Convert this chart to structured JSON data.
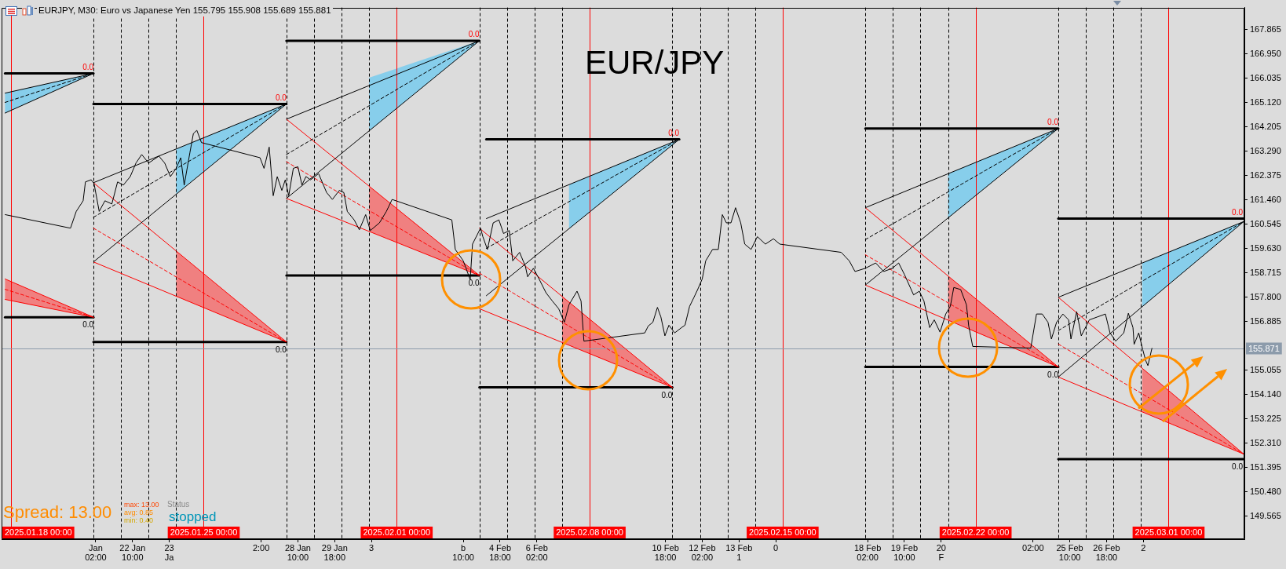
{
  "chart_data": {
    "type": "line",
    "title": "EUR/JPY",
    "subtitle": "EURJPY, M30: Euro vs Japanese Yen 155.795 155.908 155.689 155.881",
    "xlim": [
      "2025-01-17T16:00",
      "2025-03-03T18:00"
    ],
    "xticks": [
      {
        "value": "2025-01-21T02:00",
        "label": "Jan 02:00"
      },
      {
        "value": "2025-01-22T10:00",
        "label": "22 Jan 10:00"
      },
      {
        "value": "2025-01-23T18:00",
        "label": "23 Ja"
      },
      {
        "value": "2025-01-27T02:00",
        "label": "2:00"
      },
      {
        "value": "2025-01-28T10:00",
        "label": "28 Jan 10:00"
      },
      {
        "value": "2025-01-29T18:00",
        "label": "29 Jan 18:00"
      },
      {
        "value": "2025-01-31T02:00",
        "label": "3"
      },
      {
        "value": "2025-02-03T10:00",
        "label": "b 10:00"
      },
      {
        "value": "2025-02-04T18:00",
        "label": "4 Feb 18:00"
      },
      {
        "value": "2025-02-06T02:00",
        "label": "6 Feb 02:00"
      },
      {
        "value": "2025-02-10T18:00",
        "label": "10 Feb 18:00"
      },
      {
        "value": "2025-02-12T02:00",
        "label": "12 Feb 02:00"
      },
      {
        "value": "2025-02-13T10:00",
        "label": "13 Feb 1"
      },
      {
        "value": "2025-02-14T18:00",
        "label": "0"
      },
      {
        "value": "2025-02-18T02:00",
        "label": "18 Feb 02:00"
      },
      {
        "value": "2025-02-19T10:00",
        "label": "19 Feb 10:00"
      },
      {
        "value": "2025-02-20T18:00",
        "label": "20 F"
      },
      {
        "value": "2025-02-24T02:00",
        "label": "02:00"
      },
      {
        "value": "2025-02-25T10:00",
        "label": "25 Feb 10:00"
      },
      {
        "value": "2025-02-26T18:00",
        "label": "26 Feb 18:00"
      },
      {
        "value": "2025-02-28T02:00",
        "label": "2"
      }
    ],
    "ylim": [
      148.7,
      168.7
    ],
    "yticks": [
      149.565,
      {
        "value": 150.48,
        "label": "150.480"
      },
      151.395,
      {
        "value": 152.31,
        "label": "152.310"
      },
      153.225,
      {
        "value": 154.14,
        "label": "154.140"
      },
      155.055,
      156.885,
      {
        "value": 157.8,
        "label": "157.800"
      },
      158.715,
      {
        "value": 159.63,
        "label": "159.630"
      },
      160.545,
      {
        "value": 161.46,
        "label": "161.460"
      },
      162.375,
      {
        "value": 163.29,
        "label": "163.290"
      },
      164.205,
      {
        "value": 165.12,
        "label": "165.120"
      },
      166.035,
      {
        "value": 166.95,
        "label": "166.950"
      },
      167.865
    ],
    "ref_lines": [
      {
        "axis": "x",
        "value": "2025-01-18T00:00",
        "label": "2025.01.18 00:00",
        "color": "#ff0000"
      },
      {
        "axis": "x",
        "value": "2025-01-25T00:00",
        "label": "2025.01.25 00:00",
        "color": "#ff0000"
      },
      {
        "axis": "x",
        "value": "2025-02-01T00:00",
        "label": "2025.02.01 00:00",
        "color": "#ff0000"
      },
      {
        "axis": "x",
        "value": "2025-02-08T00:00",
        "label": "2025.02.08 00:00",
        "color": "#ff0000"
      },
      {
        "axis": "x",
        "value": "2025-02-15T00:00",
        "label": "2025.02.15 00:00",
        "color": "#ff0000"
      },
      {
        "axis": "x",
        "value": "2025-02-22T00:00",
        "label": "2025.02.22 00:00",
        "color": "#ff0000"
      },
      {
        "axis": "x",
        "value": "2025-03-01T00:00",
        "label": "2025.03.01 00:00",
        "color": "#ff0000"
      },
      {
        "axis": "x",
        "value": "2025-01-21T00:00",
        "color": "#000000",
        "line_style": "dashed"
      },
      {
        "axis": "x",
        "value": "2025-01-22T00:00",
        "color": "#000000",
        "line_style": "dashed"
      },
      {
        "axis": "x",
        "value": "2025-01-23T00:00",
        "color": "#000000",
        "line_style": "dashed"
      },
      {
        "axis": "x",
        "value": "2025-01-24T00:00",
        "color": "#000000",
        "line_style": "dashed"
      },
      {
        "axis": "x",
        "value": "2025-01-28T00:00",
        "color": "#000000",
        "line_style": "dashed"
      },
      {
        "axis": "x",
        "value": "2025-01-29T00:00",
        "color": "#000000",
        "line_style": "dashed"
      },
      {
        "axis": "x",
        "value": "2025-01-30T00:00",
        "color": "#000000",
        "line_style": "dashed"
      },
      {
        "axis": "x",
        "value": "2025-01-31T00:00",
        "color": "#000000",
        "line_style": "dashed"
      },
      {
        "axis": "x",
        "value": "2025-02-04T00:00",
        "color": "#000000",
        "line_style": "dashed"
      },
      {
        "axis": "x",
        "value": "2025-02-05T00:00",
        "color": "#000000",
        "line_style": "dashed"
      },
      {
        "axis": "x",
        "value": "2025-02-06T00:00",
        "color": "#000000",
        "line_style": "dashed"
      },
      {
        "axis": "x",
        "value": "2025-02-07T00:00",
        "color": "#000000",
        "line_style": "dashed"
      },
      {
        "axis": "x",
        "value": "2025-02-11T00:00",
        "color": "#000000",
        "line_style": "dashed"
      },
      {
        "axis": "x",
        "value": "2025-02-12T00:00",
        "color": "#000000",
        "line_style": "dashed"
      },
      {
        "axis": "x",
        "value": "2025-02-13T00:00",
        "color": "#000000",
        "line_style": "dashed"
      },
      {
        "axis": "x",
        "value": "2025-02-14T00:00",
        "color": "#000000",
        "line_style": "dashed"
      },
      {
        "axis": "x",
        "value": "2025-02-18T00:00",
        "color": "#000000",
        "line_style": "dashed"
      },
      {
        "axis": "x",
        "value": "2025-02-19T00:00",
        "color": "#000000",
        "line_style": "dashed"
      },
      {
        "axis": "x",
        "value": "2025-02-20T00:00",
        "color": "#000000",
        "line_style": "dashed"
      },
      {
        "axis": "x",
        "value": "2025-02-21T00:00",
        "color": "#000000",
        "line_style": "dashed"
      },
      {
        "axis": "x",
        "value": "2025-02-25T00:00",
        "color": "#000000",
        "line_style": "dashed"
      },
      {
        "axis": "x",
        "value": "2025-02-26T00:00",
        "color": "#000000",
        "line_style": "dashed"
      },
      {
        "axis": "x",
        "value": "2025-02-27T00:00",
        "color": "#000000",
        "line_style": "dashed"
      },
      {
        "axis": "x",
        "value": "2025-02-28T00:00",
        "color": "#000000",
        "line_style": "dashed"
      },
      {
        "axis": "y",
        "value": 155.871,
        "label": "155.871",
        "color": "#8c9bab"
      }
    ],
    "series": [
      {
        "color": "#000000",
        "x": [
          "2025-01-17T19:00",
          "2025-01-20T04:00",
          "2025-01-20T09:00",
          "2025-01-20T15:00",
          "2025-01-20T17:00",
          "2025-01-20T22:00",
          "2025-01-21T00:30",
          "2025-01-21T05:00",
          "2025-01-21T10:00",
          "2025-01-21T16:00",
          "2025-01-21T21:00",
          "2025-01-22T02:00",
          "2025-01-22T08:00",
          "2025-01-22T13:00",
          "2025-01-22T18:00",
          "2025-01-23T00:00",
          "2025-01-23T09:00",
          "2025-01-23T14:00",
          "2025-01-23T19:00",
          "2025-01-24T00:00",
          "2025-01-24T04:00",
          "2025-01-24T07:00",
          "2025-01-24T12:00",
          "2025-01-24T15:00",
          "2025-01-24T18:00",
          "2025-01-24T22:00",
          "2025-01-27T01:00",
          "2025-01-27T04:30",
          "2025-01-27T09:00",
          "2025-01-27T12:30",
          "2025-01-27T16:00",
          "2025-01-27T20:00",
          "2025-01-27T23:00",
          "2025-01-28T02:00",
          "2025-01-28T06:00",
          "2025-01-28T10:00",
          "2025-01-28T13:30",
          "2025-01-28T17:00",
          "2025-01-28T21:00",
          "2025-01-29T04:00",
          "2025-01-29T11:00",
          "2025-01-29T16:00",
          "2025-01-29T22:00",
          "2025-01-30T02:00",
          "2025-01-30T05:00",
          "2025-01-30T11:00",
          "2025-01-30T15:30",
          "2025-01-30T21:00",
          "2025-01-31T01:00",
          "2025-01-31T09:00",
          "2025-01-31T15:00",
          "2025-01-31T20:00",
          "2025-02-03T00:00",
          "2025-02-03T03:00",
          "2025-02-03T10:00",
          "2025-02-03T16:00",
          "2025-02-03T18:00",
          "2025-02-04T01:00",
          "2025-02-04T03:00",
          "2025-02-04T07:00",
          "2025-02-04T12:00",
          "2025-02-04T17:00",
          "2025-02-04T21:00",
          "2025-02-05T02:00",
          "2025-02-05T05:00",
          "2025-02-05T11:00",
          "2025-02-05T16:00",
          "2025-02-05T18:00",
          "2025-02-05T23:00",
          "2025-02-06T03:00",
          "2025-02-06T10:00",
          "2025-02-06T15:30",
          "2025-02-06T21:00",
          "2025-02-07T02:00",
          "2025-02-07T06:00",
          "2025-02-07T13:00",
          "2025-02-07T16:30",
          "2025-02-07T19:00",
          "2025-02-10T00:00",
          "2025-02-10T03:00",
          "2025-02-10T07:00",
          "2025-02-10T11:00",
          "2025-02-10T14:00",
          "2025-02-10T17:30",
          "2025-02-10T21:00",
          "2025-02-11T02:00",
          "2025-02-11T08:00",
          "2025-02-11T11:00",
          "2025-02-11T15:00",
          "2025-02-11T18:30",
          "2025-02-11T22:00",
          "2025-02-12T02:00",
          "2025-02-12T05:00",
          "2025-02-12T11:00",
          "2025-02-12T16:00",
          "2025-02-12T19:30",
          "2025-02-12T23:00",
          "2025-02-13T03:00",
          "2025-02-13T07:00",
          "2025-02-13T11:30",
          "2025-02-13T15:00",
          "2025-02-13T20:30",
          "2025-02-14T02:00",
          "2025-02-14T09:00",
          "2025-02-14T16:00",
          "2025-02-14T21:30",
          "2025-02-17T03:00",
          "2025-02-17T10:00",
          "2025-02-17T15:00",
          "2025-02-18T00:00",
          "2025-02-18T09:00",
          "2025-02-18T16:00",
          "2025-02-18T23:30",
          "2025-02-19T05:00",
          "2025-02-19T10:00",
          "2025-02-19T18:00",
          "2025-02-19T23:00",
          "2025-02-20T03:00",
          "2025-02-20T08:00",
          "2025-02-20T12:00",
          "2025-02-20T17:00",
          "2025-02-20T22:00",
          "2025-02-21T02:00",
          "2025-02-21T05:00",
          "2025-02-21T11:00",
          "2025-02-21T16:00",
          "2025-02-21T18:00",
          "2025-02-21T21:30",
          "2025-02-24T00:00",
          "2025-02-24T05:00",
          "2025-02-24T10:00",
          "2025-02-24T15:00",
          "2025-02-24T18:00",
          "2025-02-24T22:30",
          "2025-02-25T04:00",
          "2025-02-25T09:00",
          "2025-02-25T11:00",
          "2025-02-25T16:00",
          "2025-02-25T20:00",
          "2025-02-26T03:00",
          "2025-02-26T10:00",
          "2025-02-26T17:00",
          "2025-02-26T21:00",
          "2025-02-27T02:00",
          "2025-02-27T09:00",
          "2025-02-27T13:00",
          "2025-02-27T17:00",
          "2025-02-27T18:00",
          "2025-02-27T22:00",
          "2025-02-28T01:30",
          "2025-02-28T04:00",
          "2025-02-28T06:00",
          "2025-02-28T09:30"
        ],
        "values": [
          160.91,
          160.4,
          161.03,
          161.43,
          162.14,
          162.22,
          162.08,
          161.03,
          161.43,
          161.31,
          162.14,
          162.02,
          162.34,
          162.85,
          163.17,
          162.85,
          163.11,
          162.85,
          162.34,
          162.65,
          163.05,
          162.02,
          163.25,
          163.96,
          164.08,
          163.62,
          163.05,
          162.65,
          163.45,
          161.62,
          162.34,
          161.82,
          162.22,
          161.62,
          162.65,
          162.71,
          162.02,
          162.34,
          162.22,
          162.45,
          161.74,
          161.48,
          161.82,
          161.74,
          161.03,
          160.71,
          160.34,
          160.91,
          160.31,
          160.6,
          161.03,
          161.48,
          160.71,
          159.6,
          159.17,
          158.46,
          159.8,
          160.4,
          160.08,
          159.6,
          160.6,
          160.71,
          160.2,
          160.31,
          159.17,
          159.49,
          158.97,
          158.57,
          158.89,
          158.57,
          157.97,
          157.66,
          157.37,
          156.86,
          157.52,
          158.03,
          157.66,
          156.15,
          156.46,
          156.72,
          156.86,
          157.42,
          157.06,
          156.35,
          156.75,
          156.46,
          156.66,
          156.75,
          157.46,
          157.77,
          158.09,
          158.49,
          159.17,
          159.6,
          159.6,
          160.91,
          160.6,
          160.6,
          161.17,
          160.6,
          159.8,
          159.6,
          160.08,
          159.8,
          160.0,
          159.8,
          159.49,
          159.17,
          158.77,
          158.89,
          159.09,
          158.77,
          158.89,
          159.09,
          158.66,
          157.89,
          158.03,
          157.66,
          156.66,
          156.95,
          156.49,
          157.17,
          157.46,
          158.17,
          158.09,
          157.52,
          156.72,
          155.95,
          155.89,
          157.17,
          157.17,
          156.86,
          156.23,
          156.86,
          157.17,
          156.95,
          156.23,
          157.26,
          156.35,
          156.95,
          157.06,
          157.17,
          156.46,
          156.15,
          156.46,
          157.2,
          156.66,
          156.03,
          156.46,
          155.83,
          155.43,
          155.23,
          155.88
        ]
      },
      {
        "type": "line",
        "color": "#87ceeb",
        "x": [
          "2025-01-17T19:00",
          "2025-01-21T00:00"
        ],
        "values": [
          null,
          null
        ],
        "lower": [
          164.73,
          166.22
        ],
        "upper": [
          165.48,
          166.22
        ]
      },
      {
        "type": "line",
        "color": "#000000",
        "x": [
          "2025-01-17T19:00",
          "2025-01-21T00:00"
        ],
        "values": [
          165.48,
          166.22
        ]
      },
      {
        "type": "line",
        "color": "#000000",
        "line_style": "dashed",
        "x": [
          "2025-01-17T19:00",
          "2025-01-21T00:00"
        ],
        "values": [
          165.13,
          166.22
        ]
      },
      {
        "type": "line",
        "color": "#000000",
        "x": [
          "2025-01-17T19:00",
          "2025-01-21T00:00"
        ],
        "values": [
          164.73,
          166.22
        ]
      },
      {
        "type": "line",
        "color": "#000000",
        "x": [
          "2025-01-17T19:00",
          "2025-01-21T00:00"
        ],
        "values": [
          166.22,
          166.22
        ]
      },
      {
        "type": "line",
        "color": "#f08080",
        "x": [
          "2025-01-17T19:00",
          "2025-01-21T00:00"
        ],
        "values": [
          null,
          null
        ],
        "lower": [
          157.72,
          157.05
        ],
        "upper": [
          158.49,
          157.05
        ]
      },
      {
        "type": "line",
        "color": "#ff0000",
        "x": [
          "2025-01-17T19:00",
          "2025-01-21T00:00"
        ],
        "values": [
          158.49,
          157.05
        ]
      },
      {
        "type": "line",
        "color": "#ff0000",
        "line_style": "dashed",
        "x": [
          "2025-01-17T19:00",
          "2025-01-21T00:00"
        ],
        "values": [
          158.1,
          157.05
        ]
      },
      {
        "type": "line",
        "color": "#ff0000",
        "x": [
          "2025-01-17T19:00",
          "2025-01-21T00:00"
        ],
        "values": [
          157.72,
          157.05
        ]
      },
      {
        "type": "line",
        "color": "#000000",
        "x": [
          "2025-01-17T19:00",
          "2025-01-21T00:00"
        ],
        "values": [
          157.05,
          157.05
        ]
      },
      {
        "type": "line",
        "color": "#87ceeb",
        "x": [
          "2025-01-24T00:00",
          "2025-01-28T00:00"
        ],
        "values": [
          null,
          null
        ],
        "lower": [
          161.68,
          165.07
        ],
        "upper": [
          163.38,
          165.07
        ]
      },
      {
        "type": "line",
        "color": "#000000",
        "x": [
          "2025-01-21T00:00",
          "2025-01-28T00:00"
        ],
        "values": [
          162.11,
          165.07
        ]
      },
      {
        "type": "line",
        "color": "#000000",
        "line_style": "dashed",
        "x": [
          "2025-01-21T00:00",
          "2025-01-28T00:00"
        ],
        "values": [
          160.81,
          165.07
        ]
      },
      {
        "type": "line",
        "color": "#000000",
        "x": [
          "2025-01-21T00:00",
          "2025-01-28T00:00"
        ],
        "values": [
          159.13,
          165.07
        ]
      },
      {
        "type": "line",
        "color": "#000000",
        "x": [
          "2025-01-21T00:00",
          "2025-01-28T00:00"
        ],
        "values": [
          165.07,
          165.07
        ]
      },
      {
        "type": "line",
        "color": "#f08080",
        "x": [
          "2025-01-24T00:00",
          "2025-01-28T00:00"
        ],
        "values": [
          null,
          null
        ],
        "lower": [
          157.84,
          156.12
        ],
        "upper": [
          159.54,
          156.12
        ]
      },
      {
        "type": "line",
        "color": "#ff0000",
        "x": [
          "2025-01-21T00:00",
          "2025-01-28T00:00"
        ],
        "values": [
          162.11,
          156.12
        ]
      },
      {
        "type": "line",
        "color": "#ff0000",
        "line_style": "dashed",
        "x": [
          "2025-01-21T00:00",
          "2025-01-28T00:00"
        ],
        "values": [
          160.4,
          156.12
        ]
      },
      {
        "type": "line",
        "color": "#ff0000",
        "x": [
          "2025-01-21T00:00",
          "2025-01-28T00:00"
        ],
        "values": [
          159.13,
          156.12
        ]
      },
      {
        "type": "line",
        "color": "#000000",
        "x": [
          "2025-01-21T00:00",
          "2025-01-28T00:00"
        ],
        "values": [
          156.12,
          156.12
        ]
      },
      {
        "type": "line",
        "color": "#87ceeb",
        "x": [
          "2025-01-31T00:00",
          "2025-02-04T00:00"
        ],
        "values": [
          null,
          null
        ],
        "lower": [
          164.06,
          167.45
        ],
        "upper": [
          166.06,
          167.45
        ]
      },
      {
        "type": "line",
        "color": "#000000",
        "x": [
          "2025-01-28T00:00",
          "2025-02-04T00:00"
        ],
        "values": [
          164.5,
          167.45
        ]
      },
      {
        "type": "line",
        "color": "#000000",
        "line_style": "dashed",
        "x": [
          "2025-01-28T00:00",
          "2025-02-04T00:00"
        ],
        "values": [
          163.17,
          167.45
        ]
      },
      {
        "type": "line",
        "color": "#000000",
        "x": [
          "2025-01-28T00:00",
          "2025-02-04T00:00"
        ],
        "values": [
          161.52,
          167.45
        ]
      },
      {
        "type": "line",
        "color": "#000000",
        "x": [
          "2025-01-28T00:00",
          "2025-02-04T00:00"
        ],
        "values": [
          167.45,
          167.45
        ]
      },
      {
        "type": "line",
        "color": "#f08080",
        "x": [
          "2025-01-31T00:00",
          "2025-02-04T00:00"
        ],
        "values": [
          null,
          null
        ],
        "lower": [
          160.28,
          158.62
        ],
        "upper": [
          161.98,
          158.62
        ]
      },
      {
        "type": "line",
        "color": "#ff0000",
        "x": [
          "2025-01-28T00:00",
          "2025-02-04T00:00"
        ],
        "values": [
          164.5,
          158.62
        ]
      },
      {
        "type": "line",
        "color": "#ff0000",
        "line_style": "dashed",
        "x": [
          "2025-01-28T00:00",
          "2025-02-04T00:00"
        ],
        "values": [
          162.9,
          158.62
        ]
      },
      {
        "type": "line",
        "color": "#ff0000",
        "x": [
          "2025-01-28T00:00",
          "2025-02-04T00:00"
        ],
        "values": [
          161.52,
          158.62
        ]
      },
      {
        "type": "line",
        "color": "#000000",
        "x": [
          "2025-01-28T00:00",
          "2025-02-04T00:00"
        ],
        "values": [
          158.62,
          158.62
        ]
      },
      {
        "type": "line",
        "color": "#87ceeb",
        "x": [
          "2025-02-07T06:00",
          "2025-02-11T06:00"
        ],
        "values": [
          null,
          null
        ],
        "lower": [
          160.38,
          163.74
        ],
        "upper": [
          162.04,
          163.74
        ]
      },
      {
        "type": "line",
        "color": "#000000",
        "x": [
          "2025-02-04T06:00",
          "2025-02-11T06:00"
        ],
        "values": [
          160.76,
          163.74
        ]
      },
      {
        "type": "line",
        "color": "#000000",
        "line_style": "dashed",
        "x": [
          "2025-02-04T06:00",
          "2025-02-11T06:00"
        ],
        "values": [
          159.64,
          163.74
        ]
      },
      {
        "type": "line",
        "color": "#000000",
        "x": [
          "2025-02-04T06:00",
          "2025-02-11T06:00"
        ],
        "values": [
          157.86,
          163.74
        ]
      },
      {
        "type": "line",
        "color": "#000000",
        "x": [
          "2025-02-04T06:00",
          "2025-02-11T06:00"
        ],
        "values": [
          163.74,
          163.74
        ]
      },
      {
        "type": "line",
        "color": "#f08080",
        "x": [
          "2025-02-07T00:00",
          "2025-02-11T00:00"
        ],
        "values": [
          null,
          null
        ],
        "lower": [
          156.1,
          154.41
        ],
        "upper": [
          157.83,
          154.41
        ]
      },
      {
        "type": "line",
        "color": "#ff0000",
        "x": [
          "2025-02-04T00:00",
          "2025-02-11T00:00"
        ],
        "values": [
          160.4,
          154.41
        ]
      },
      {
        "type": "line",
        "color": "#ff0000",
        "line_style": "dashed",
        "x": [
          "2025-02-04T00:00",
          "2025-02-11T00:00"
        ],
        "values": [
          158.71,
          154.41
        ]
      },
      {
        "type": "line",
        "color": "#ff0000",
        "x": [
          "2025-02-04T00:00",
          "2025-02-11T00:00"
        ],
        "values": [
          157.37,
          154.41
        ]
      },
      {
        "type": "line",
        "color": "#000000",
        "x": [
          "2025-02-04T00:00",
          "2025-02-11T00:00"
        ],
        "values": [
          154.41,
          154.41
        ]
      },
      {
        "type": "line",
        "color": "#87ceeb",
        "x": [
          "2025-02-21T00:00",
          "2025-02-25T00:00"
        ],
        "values": [
          null,
          null
        ],
        "lower": [
          160.78,
          164.15
        ],
        "upper": [
          162.45,
          164.15
        ]
      },
      {
        "type": "line",
        "color": "#000000",
        "x": [
          "2025-02-18T00:00",
          "2025-02-25T00:00"
        ],
        "values": [
          161.17,
          164.15
        ]
      },
      {
        "type": "line",
        "color": "#000000",
        "line_style": "dashed",
        "x": [
          "2025-02-18T00:00",
          "2025-02-25T00:00"
        ],
        "values": [
          159.97,
          164.15
        ]
      },
      {
        "type": "line",
        "color": "#000000",
        "x": [
          "2025-02-18T00:00",
          "2025-02-25T00:00"
        ],
        "values": [
          158.26,
          164.15
        ]
      },
      {
        "type": "line",
        "color": "#000000",
        "x": [
          "2025-02-18T00:00",
          "2025-02-25T00:00"
        ],
        "values": [
          164.15,
          164.15
        ]
      },
      {
        "type": "line",
        "color": "#f08080",
        "x": [
          "2025-02-21T00:00",
          "2025-02-25T00:00"
        ],
        "values": [
          null,
          null
        ],
        "lower": [
          156.94,
          155.18
        ],
        "upper": [
          158.6,
          155.18
        ]
      },
      {
        "type": "line",
        "color": "#ff0000",
        "x": [
          "2025-02-18T00:00",
          "2025-02-25T00:00"
        ],
        "values": [
          161.17,
          155.18
        ]
      },
      {
        "type": "line",
        "color": "#ff0000",
        "line_style": "dashed",
        "x": [
          "2025-02-18T00:00",
          "2025-02-25T00:00"
        ],
        "values": [
          159.4,
          155.18
        ]
      },
      {
        "type": "line",
        "color": "#ff0000",
        "x": [
          "2025-02-18T00:00",
          "2025-02-25T00:00"
        ],
        "values": [
          158.26,
          155.18
        ]
      },
      {
        "type": "line",
        "color": "#000000",
        "x": [
          "2025-02-18T00:00",
          "2025-02-25T00:00"
        ],
        "values": [
          155.18,
          155.18
        ]
      },
      {
        "type": "line",
        "color": "#87ceeb",
        "x": [
          "2025-02-28T01:00",
          "2025-03-03T17:30"
        ],
        "values": [
          null,
          null
        ],
        "lower": [
          157.44,
          160.65
        ],
        "upper": [
          159.09,
          160.65
        ]
      },
      {
        "type": "line",
        "color": "#000000",
        "x": [
          "2025-02-25T00:00",
          "2025-03-03T17:30"
        ],
        "values": [
          157.8,
          160.65
        ]
      },
      {
        "type": "line",
        "color": "#000000",
        "line_style": "dashed",
        "x": [
          "2025-02-25T00:00",
          "2025-03-03T17:30"
        ],
        "values": [
          156.55,
          160.65
        ]
      },
      {
        "type": "line",
        "color": "#000000",
        "x": [
          "2025-02-25T00:00",
          "2025-03-03T17:30"
        ],
        "values": [
          154.8,
          160.65
        ]
      },
      {
        "type": "line",
        "color": "#000000",
        "x": [
          "2025-02-25T00:00",
          "2025-03-03T17:30"
        ],
        "values": [
          160.76,
          160.76
        ]
      },
      {
        "type": "line",
        "color": "#f08080",
        "x": [
          "2025-02-28T01:00",
          "2025-03-03T17:30"
        ],
        "values": [
          null,
          null
        ],
        "lower": [
          153.49,
          151.9
        ],
        "upper": [
          155.13,
          151.9
        ]
      },
      {
        "type": "line",
        "color": "#ff0000",
        "x": [
          "2025-02-25T00:00",
          "2025-03-03T17:30"
        ],
        "values": [
          157.8,
          151.9
        ]
      },
      {
        "type": "line",
        "color": "#ff0000",
        "line_style": "dashed",
        "x": [
          "2025-02-25T00:00",
          "2025-03-03T17:30"
        ],
        "values": [
          156.04,
          151.9
        ]
      },
      {
        "type": "line",
        "color": "#ff0000",
        "x": [
          "2025-02-25T00:00",
          "2025-03-03T17:30"
        ],
        "values": [
          154.8,
          151.9
        ]
      },
      {
        "type": "line",
        "color": "#000000",
        "x": [
          "2025-02-25T00:00",
          "2025-03-03T17:30"
        ],
        "values": [
          151.71,
          151.71
        ]
      }
    ],
    "annotations": [
      {
        "text": "0.0",
        "x": "2025-01-21T00:00",
        "y": 166.22
      },
      {
        "text": "0.0",
        "x": "2025-01-21T00:00",
        "y": 157.05
      },
      {
        "text": "0.0",
        "x": "2025-01-28T00:00",
        "y": 165.07
      },
      {
        "text": "0.0",
        "x": "2025-01-28T00:00",
        "y": 156.12
      },
      {
        "text": "0.0",
        "x": "2025-02-04T00:00",
        "y": 167.45
      },
      {
        "text": "0.0",
        "x": "2025-02-04T00:00",
        "y": 158.62
      },
      {
        "text": "0.0",
        "x": "2025-02-11T06:00",
        "y": 163.74
      },
      {
        "text": "0.0",
        "x": "2025-02-11T00:00",
        "y": 154.41
      },
      {
        "text": "0.0",
        "x": "2025-02-25T00:00",
        "y": 164.15
      },
      {
        "text": "0.0",
        "x": "2025-02-25T00:00",
        "y": 155.18
      },
      {
        "text": "0.0",
        "x": "2025-03-03T17:30",
        "y": 160.76
      },
      {
        "text": "0.0",
        "x": "2025-03-03T17:30",
        "y": 151.71
      },
      "Spread: 13.00",
      "max: 13.00",
      "avg: 0.85",
      "min: 0.40",
      "Status",
      "stopped"
    ]
  }
}
